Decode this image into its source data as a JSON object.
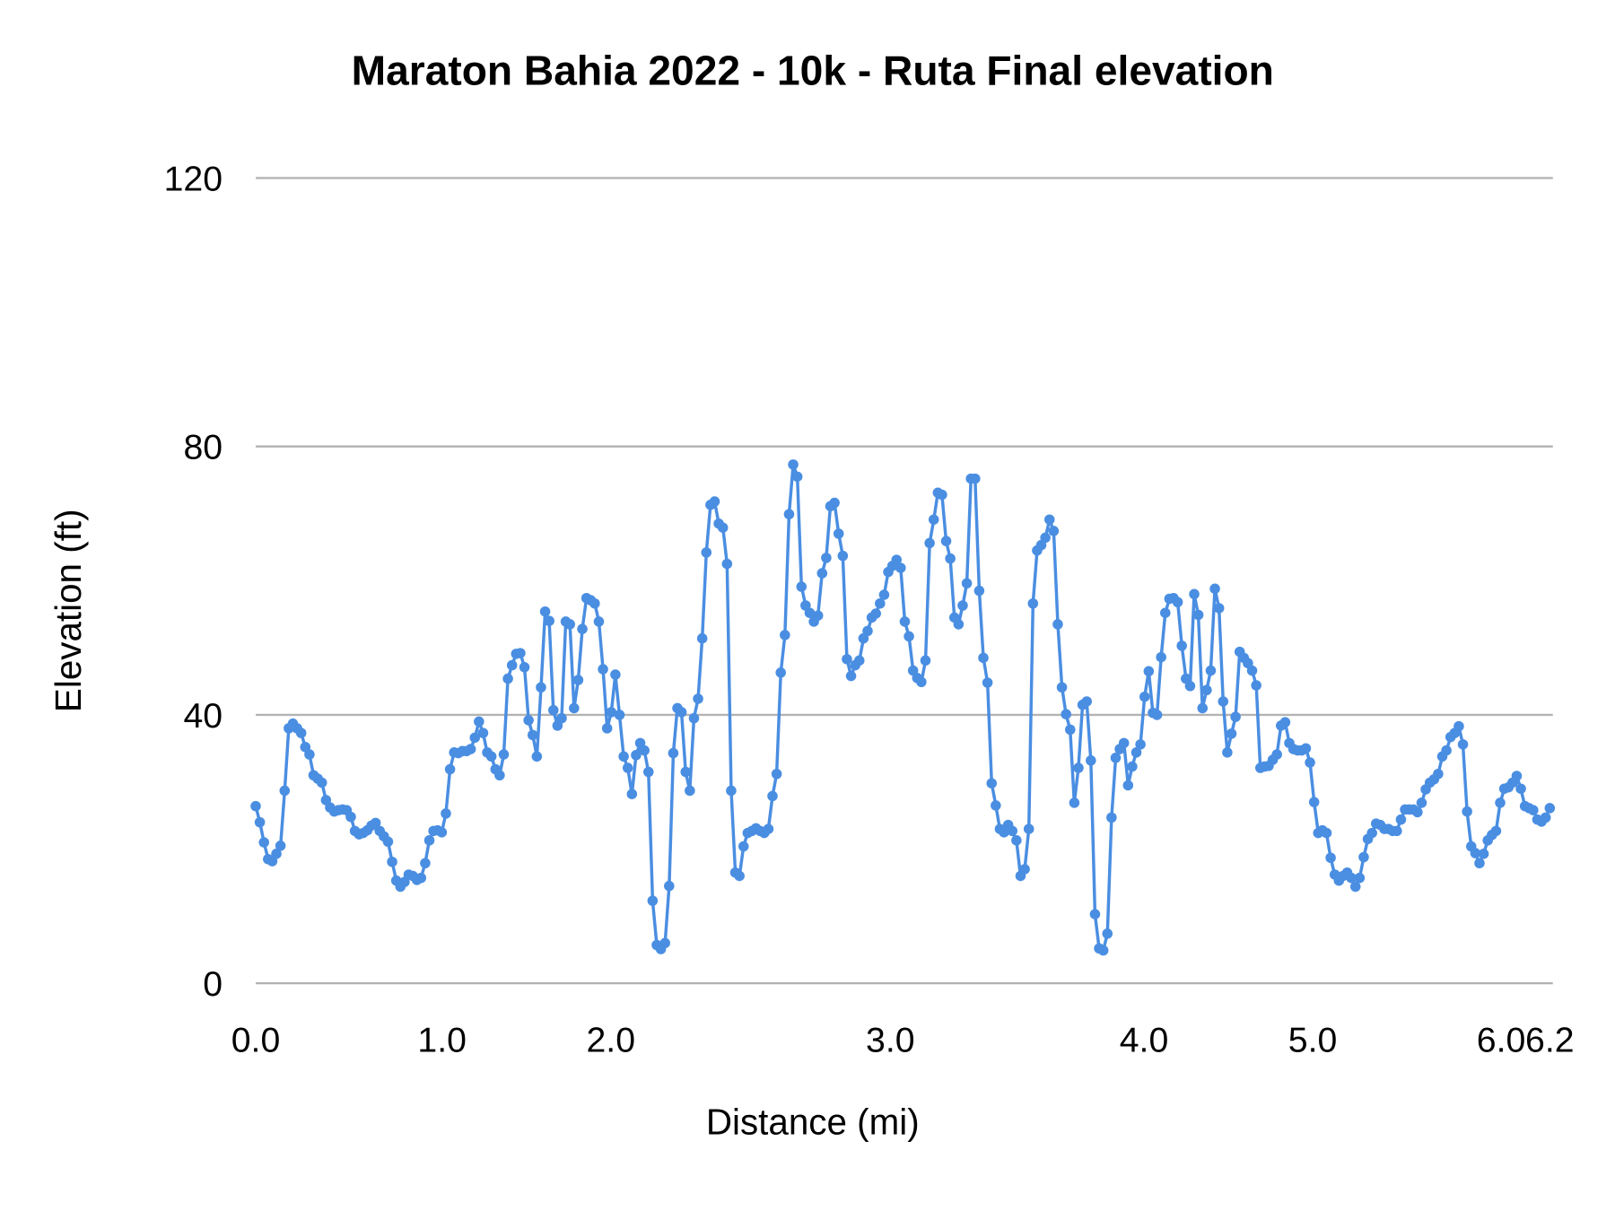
{
  "chart_data": {
    "type": "line",
    "title": "Maraton Bahia 2022 - 10k - Ruta Final elevation",
    "xlabel": "Distance (mi)",
    "ylabel": "Elevation (ft)",
    "ylim": [
      0,
      120
    ],
    "yticks": [
      "0",
      "40",
      "80",
      "120"
    ],
    "xtick_labels": [
      "0.0",
      "1.0",
      "2.0",
      "3.0",
      "4.0",
      "5.0",
      "6.0",
      "6.2"
    ],
    "grid": true,
    "legend": "none",
    "markers": true,
    "color": "#4a8ee2",
    "grid_color": "#b3b3b3",
    "values": [
      26.4,
      24,
      21,
      18.5,
      18.2,
      19.3,
      20.5,
      28.7,
      38,
      38.7,
      38,
      37.3,
      35.2,
      34.1,
      31,
      30.5,
      29.9,
      27.3,
      26.2,
      25.6,
      25.8,
      25.9,
      25.8,
      24.8,
      22.7,
      22.2,
      22.4,
      22.8,
      23.5,
      23.9,
      22.7,
      21.9,
      21.1,
      18.1,
      15.3,
      14.4,
      15.1,
      16.2,
      16,
      15.4,
      15.7,
      17.9,
      21.3,
      22.7,
      22.8,
      22.5,
      25.3,
      31.9,
      34.4,
      34.3,
      34.6,
      34.6,
      34.9,
      36.6,
      39,
      37.3,
      34.4,
      33.8,
      31.9,
      31,
      34.1,
      45.4,
      47.4,
      49.1,
      49.2,
      47.1,
      39.2,
      37,
      33.8,
      44.1,
      55.4,
      54,
      40.7,
      38.4,
      39.5,
      53.9,
      53.5,
      41,
      45.2,
      52.8,
      57.4,
      57.1,
      56.6,
      53.9,
      46.8,
      38,
      40.4,
      46,
      40,
      33.8,
      32.1,
      28.2,
      34,
      35.8,
      34.7,
      31.5,
      12.3,
      5.7,
      5.1,
      6,
      14.5,
      34.3,
      41,
      40.4,
      31.5,
      28.7,
      39.5,
      42.4,
      51.4,
      64.2,
      71.3,
      71.8,
      68.5,
      67.9,
      62.5,
      28.7,
      16.5,
      16,
      20.4,
      22.4,
      22.7,
      23.1,
      22.7,
      22.4,
      23,
      27.9,
      31.2,
      46.3,
      51.9,
      69.9,
      77.3,
      75.5,
      59.1,
      56.3,
      55.2,
      53.9,
      54.8,
      61.1,
      63.4,
      71.1,
      71.6,
      67,
      63.7,
      48.3,
      45.8,
      47.4,
      48.1,
      51.4,
      52.5,
      54.5,
      55.1,
      56.6,
      57.9,
      61.3,
      62.2,
      63.1,
      61.9,
      53.9,
      51.7,
      46.6,
      45.5,
      44.9,
      48.1,
      65.6,
      69.1,
      73.1,
      72.8,
      65.9,
      63.3,
      54.5,
      53.5,
      56.3,
      59.6,
      75.2,
      75.2,
      58.5,
      48.5,
      44.8,
      29.8,
      26.5,
      23,
      22.5,
      23.6,
      22.7,
      21.3,
      16,
      17,
      23,
      56.6,
      64.5,
      65.3,
      66.4,
      69.1,
      67.4,
      53.5,
      44.1,
      40.1,
      37.8,
      26.9,
      32.1,
      41.5,
      42,
      33.2,
      10.3,
      5.2,
      4.9,
      7.4,
      24.7,
      33.6,
      34.9,
      35.8,
      29.5,
      32.3,
      34.4,
      35.6,
      42.7,
      46.5,
      40.3,
      40,
      48.6,
      55.2,
      57.3,
      57.4,
      56.8,
      50.3,
      45.4,
      44.3,
      58,
      54.9,
      41,
      43.7,
      46.6,
      58.8,
      55.9,
      42,
      34.4,
      37.2,
      39.7,
      49.4,
      48.5,
      47.7,
      46.6,
      44.4,
      32.1,
      32.3,
      32.4,
      33.3,
      34.1,
      38.4,
      38.9,
      35.8,
      34.9,
      34.7,
      34.7,
      35,
      32.9,
      27,
      22.4,
      22.8,
      22.4,
      18.7,
      16.2,
      15.3,
      16,
      16.5,
      15.7,
      14.4,
      15.7,
      18.8,
      21.5,
      22.4,
      23.8,
      23.6,
      23,
      23,
      22.7,
      22.7,
      24.4,
      25.9,
      25.9,
      25.9,
      25.5,
      26.9,
      28.9,
      29.9,
      30.4,
      31.2,
      33.8,
      34.7,
      36.7,
      37.3,
      38.3,
      35.6,
      25.6,
      20.4,
      19.4,
      17.9,
      19.3,
      21.3,
      22.1,
      22.7,
      26.9,
      29,
      29.2,
      29.9,
      30.9,
      29,
      26.4,
      26.1,
      25.8,
      24.4,
      24.1,
      24.7,
      26.1
    ]
  }
}
